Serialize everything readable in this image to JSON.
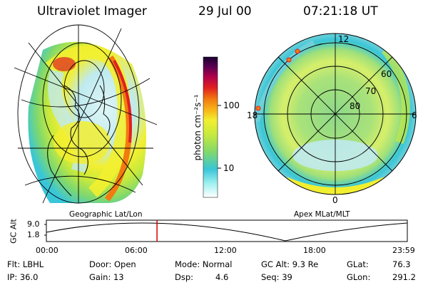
{
  "header": {
    "instrument": "Ultraviolet Imager",
    "date": "29 Jul 00",
    "time": "07:21:18 UT"
  },
  "colorbar": {
    "unit_label": "photon cm⁻²s⁻¹",
    "ticks": [
      "100",
      "10"
    ],
    "scale": "log",
    "colors": [
      "#ffffff",
      "#9ff0f0",
      "#39c6d8",
      "#7fd86e",
      "#c8ea3c",
      "#f2ef30",
      "#f8b818",
      "#f27a10",
      "#e02020",
      "#b0004a",
      "#5a0050",
      "#1a0030"
    ]
  },
  "left_panel": {
    "caption": "Geographic Lat/Lon"
  },
  "right_panel": {
    "caption": "Apex MLat/MLT",
    "mlt_labels": {
      "top": "12",
      "left": "18",
      "right": "6",
      "bottom": "0"
    },
    "lat_labels": [
      "60",
      "70",
      "80"
    ]
  },
  "timeline": {
    "axis_label": "GC Alt",
    "y_ticks": [
      "9.0",
      "1.8"
    ],
    "x_ticks": [
      "00:00",
      "06:00",
      "12:00",
      "18:00",
      "23:59"
    ],
    "current_time_fraction": 0.3065,
    "marker_color": "#d00000"
  },
  "status": {
    "flt": "Flt: LBHL",
    "ip": "IP: 36.0",
    "door": "Door: Open",
    "gain": "Gain: 13",
    "mode": "Mode: Normal",
    "dsp_label": "Dsp:",
    "dsp_value": "4.6",
    "gcalt": "GC Alt: 9.3 Re",
    "seq": "Seq: 39",
    "glat_label": "GLat:",
    "glat_value": "76.3",
    "glon_label": "GLon:",
    "glon_value": "291.2"
  }
}
